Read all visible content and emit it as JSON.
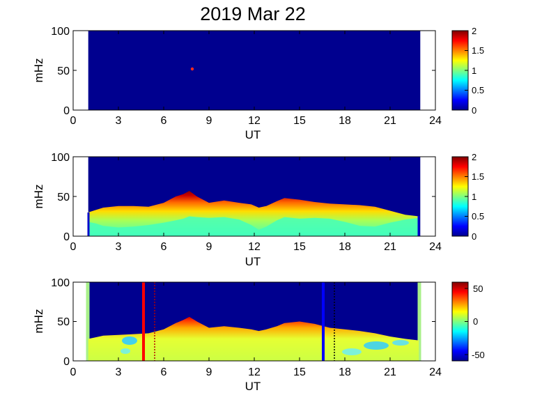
{
  "title": "2019 Mar 22",
  "chart_data": [
    {
      "type": "heatmap",
      "xlabel": "UT",
      "ylabel": "mHz",
      "xlim": [
        0,
        24
      ],
      "ylim": [
        0,
        100
      ],
      "xticks": [
        "0",
        "3",
        "6",
        "9",
        "12",
        "15",
        "18",
        "21",
        "24"
      ],
      "yticks": [
        "0",
        "50",
        "100"
      ],
      "data_range_ut": [
        1,
        23
      ],
      "background": "dark-blue",
      "colorbar": {
        "min": 0,
        "max": 2,
        "ticks": [
          "0",
          "0.5",
          "1",
          "1.5",
          "2"
        ]
      },
      "points": [
        {
          "ut": 7.9,
          "mhz": 52,
          "color": "#ff2a1a"
        }
      ]
    },
    {
      "type": "heatmap",
      "xlabel": "UT",
      "ylabel": "mHz",
      "xlim": [
        0,
        24
      ],
      "ylim": [
        0,
        100
      ],
      "xticks": [
        "0",
        "3",
        "6",
        "9",
        "12",
        "15",
        "18",
        "21",
        "24"
      ],
      "yticks": [
        "0",
        "50",
        "100"
      ],
      "data_range_ut": [
        1,
        23
      ],
      "colorbar": {
        "min": 0,
        "max": 2,
        "ticks": [
          "0",
          "0.5",
          "1",
          "1.5",
          "2"
        ]
      },
      "upper_edge_mhz": {
        "ut": [
          1,
          1.5,
          2,
          3,
          4,
          5,
          6,
          6.8,
          7.3,
          7.7,
          8.2,
          9,
          10,
          11,
          11.8,
          12.3,
          12.8,
          13.5,
          14,
          15,
          16,
          17,
          18,
          19,
          20,
          21,
          22,
          22.9
        ],
        "mhz": [
          30,
          33,
          36,
          38,
          38,
          37,
          42,
          50,
          53,
          57,
          50,
          42,
          45,
          42,
          40,
          36,
          38,
          44,
          48,
          46,
          43,
          41,
          40,
          39,
          37,
          32,
          27,
          25
        ]
      },
      "lower_edge_mhz": {
        "ut": [
          1,
          1.5,
          2,
          3,
          4,
          5,
          6,
          6.8,
          7.3,
          7.7,
          8.2,
          9,
          10,
          11,
          11.8,
          12.3,
          12.8,
          13.5,
          14,
          15,
          16,
          17,
          18,
          19,
          20,
          21,
          22,
          22.9
        ],
        "mhz": [
          18,
          16,
          13,
          11,
          12,
          14,
          17,
          20,
          22,
          25,
          24,
          23,
          24,
          21,
          14,
          8,
          12,
          20,
          24,
          22,
          23,
          22,
          18,
          13,
          12,
          17,
          21,
          23
        ]
      }
    },
    {
      "type": "heatmap",
      "xlabel": "UT",
      "ylabel": "mHz",
      "xlim": [
        0,
        24
      ],
      "ylim": [
        0,
        100
      ],
      "xticks": [
        "0",
        "3",
        "6",
        "9",
        "12",
        "15",
        "18",
        "21",
        "24"
      ],
      "yticks": [
        "0",
        "50",
        "100"
      ],
      "data_range_ut": [
        1,
        23
      ],
      "edge_color": "light-green",
      "colorbar": {
        "min": -60,
        "max": 60,
        "ticks": [
          "50",
          "0",
          "-50"
        ]
      },
      "upper_edge_mhz": {
        "ut": [
          1,
          1.5,
          2,
          3,
          4,
          5,
          6,
          6.8,
          7.3,
          7.7,
          8.2,
          9,
          10,
          11,
          11.8,
          12.3,
          12.8,
          13.5,
          14,
          15,
          16,
          17,
          18,
          19,
          20,
          21,
          22,
          22.9
        ],
        "mhz": [
          28,
          30,
          32,
          33,
          34,
          35,
          40,
          48,
          52,
          56,
          50,
          42,
          44,
          42,
          40,
          38,
          40,
          44,
          48,
          50,
          47,
          42,
          40,
          38,
          35,
          31,
          28,
          26
        ]
      },
      "vertical_lines": [
        {
          "ut": 4.7,
          "color": "#ff0000",
          "style": "solid"
        },
        {
          "ut": 5.4,
          "color": "#b30000",
          "style": "dotted"
        },
        {
          "ut": 16.5,
          "color": "#0000ff",
          "style": "solid"
        },
        {
          "ut": 17.3,
          "color": "#000000",
          "style": "dotted"
        }
      ]
    }
  ]
}
